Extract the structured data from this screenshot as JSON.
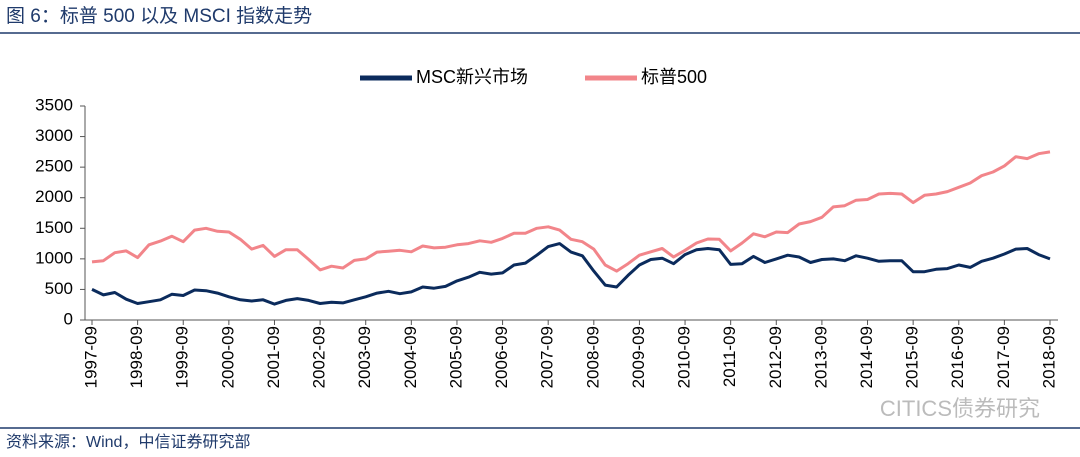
{
  "chart_data": {
    "type": "line",
    "title": "图 6：标普 500 以及 MSCI 指数走势",
    "source": "资料来源：Wind，中信证券研究部",
    "watermark": "CITICS债券研究",
    "categories": [
      "1997-09",
      null,
      null,
      null,
      "1998-09",
      null,
      null,
      null,
      "1999-09",
      null,
      null,
      null,
      "2000-09",
      null,
      null,
      null,
      "2001-09",
      null,
      null,
      null,
      "2002-09",
      null,
      null,
      null,
      "2003-09",
      null,
      null,
      null,
      "2004-09",
      null,
      null,
      null,
      "2005-09",
      null,
      null,
      null,
      "2006-09",
      null,
      null,
      null,
      "2007-09",
      null,
      null,
      null,
      "2008-09",
      null,
      null,
      null,
      "2009-09",
      null,
      null,
      null,
      "2010-09",
      null,
      null,
      null,
      "2011-09",
      null,
      null,
      null,
      "2012-09",
      null,
      null,
      null,
      "2013-09",
      null,
      null,
      null,
      "2014-09",
      null,
      null,
      null,
      "2015-09",
      null,
      null,
      null,
      "2016-09",
      null,
      null,
      null,
      "2017-09",
      null,
      null,
      null,
      "2018-09"
    ],
    "series": [
      {
        "name": "MSC新兴市场",
        "color": "#0b2b5c",
        "values": [
          500,
          410,
          450,
          340,
          270,
          300,
          330,
          420,
          400,
          490,
          480,
          440,
          380,
          330,
          310,
          330,
          260,
          320,
          350,
          320,
          270,
          290,
          280,
          330,
          380,
          440,
          470,
          430,
          460,
          540,
          520,
          550,
          640,
          700,
          780,
          750,
          770,
          900,
          930,
          1060,
          1200,
          1250,
          1110,
          1050,
          800,
          570,
          540,
          730,
          900,
          990,
          1010,
          920,
          1070,
          1150,
          1170,
          1150,
          910,
          920,
          1040,
          940,
          1000,
          1060,
          1030,
          940,
          990,
          1000,
          970,
          1050,
          1010,
          960,
          970,
          970,
          790,
          790,
          830,
          840,
          900,
          860,
          960,
          1010,
          1080,
          1160,
          1170,
          1070,
          1000
        ]
      },
      {
        "name": "标普500",
        "color": "#f2858a",
        "values": [
          950,
          970,
          1100,
          1130,
          1020,
          1230,
          1290,
          1370,
          1280,
          1470,
          1500,
          1450,
          1440,
          1320,
          1160,
          1220,
          1040,
          1150,
          1150,
          990,
          820,
          880,
          850,
          975,
          1000,
          1110,
          1125,
          1140,
          1115,
          1210,
          1180,
          1190,
          1230,
          1250,
          1295,
          1270,
          1335,
          1420,
          1420,
          1500,
          1525,
          1470,
          1320,
          1280,
          1160,
          900,
          800,
          920,
          1060,
          1115,
          1170,
          1030,
          1140,
          1260,
          1325,
          1320,
          1130,
          1260,
          1410,
          1360,
          1440,
          1430,
          1570,
          1610,
          1680,
          1850,
          1870,
          1960,
          1970,
          2060,
          2070,
          2060,
          1920,
          2040,
          2060,
          2100,
          2170,
          2240,
          2360,
          2420,
          2520,
          2670,
          2640,
          2720,
          2750
        ]
      }
    ],
    "ylim": [
      0,
      3500
    ],
    "yticks": [
      0,
      500,
      1000,
      1500,
      2000,
      2500,
      3000,
      3500
    ],
    "grid": false,
    "legend": "top"
  }
}
